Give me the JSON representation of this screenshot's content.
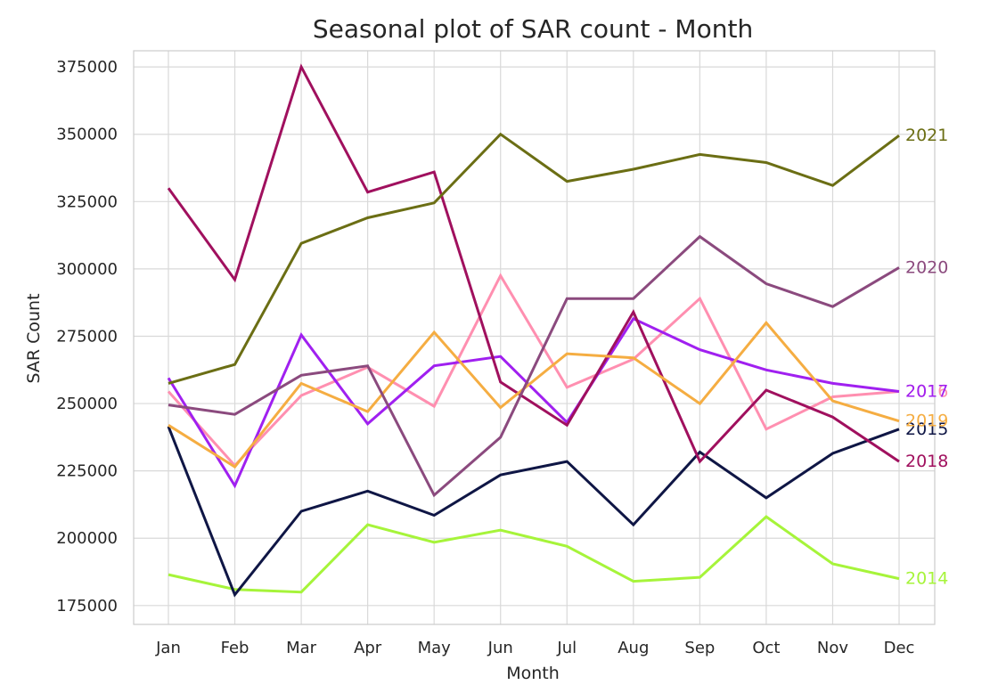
{
  "chart_data": {
    "type": "line",
    "title": "Seasonal plot of SAR count - Month",
    "xlabel": "Month",
    "ylabel": "SAR Count",
    "categories": [
      "Jan",
      "Feb",
      "Mar",
      "Apr",
      "May",
      "Jun",
      "Jul",
      "Aug",
      "Sep",
      "Oct",
      "Nov",
      "Dec"
    ],
    "yticks": [
      "175000",
      "200000",
      "225000",
      "250000",
      "275000",
      "300000",
      "325000",
      "350000",
      "375000"
    ],
    "ylim": [
      168000,
      381000
    ],
    "grid": true,
    "legend": "end-of-line labels",
    "series": [
      {
        "name": "2014",
        "color": "#a6f43a",
        "values": [
          186500,
          181000,
          180000,
          205000,
          198500,
          203000,
          197000,
          184000,
          185500,
          208000,
          190500,
          185000
        ]
      },
      {
        "name": "2015",
        "color": "#0f1645",
        "values": [
          241500,
          179000,
          210000,
          217500,
          208500,
          223500,
          228500,
          205000,
          232000,
          215000,
          231500,
          240500
        ]
      },
      {
        "name": "2016",
        "color": "#ff8fb0",
        "values": [
          254500,
          227000,
          253000,
          263500,
          249000,
          297500,
          256000,
          266500,
          289000,
          240500,
          252500,
          254500
        ]
      },
      {
        "name": "2017",
        "color": "#a020f0",
        "values": [
          259500,
          219500,
          275500,
          242500,
          264000,
          267500,
          243000,
          281500,
          270000,
          262500,
          257500,
          254500
        ]
      },
      {
        "name": "2018",
        "color": "#a0105e",
        "values": [
          330000,
          296000,
          375000,
          328500,
          336000,
          258000,
          242000,
          284000,
          228500,
          255000,
          245000,
          228500
        ]
      },
      {
        "name": "2019",
        "color": "#f5ad42",
        "values": [
          242000,
          226500,
          257500,
          247000,
          276500,
          248500,
          268500,
          267000,
          250000,
          280000,
          251000,
          243500
        ]
      },
      {
        "name": "2020",
        "color": "#8b4a7e",
        "values": [
          249500,
          246000,
          260500,
          264000,
          216000,
          237500,
          289000,
          289000,
          312000,
          294500,
          286000,
          300500
        ]
      },
      {
        "name": "2021",
        "color": "#6b6e14",
        "values": [
          257500,
          264500,
          309500,
          319000,
          324500,
          350000,
          332500,
          337000,
          342500,
          339500,
          331000,
          349500
        ]
      }
    ]
  }
}
